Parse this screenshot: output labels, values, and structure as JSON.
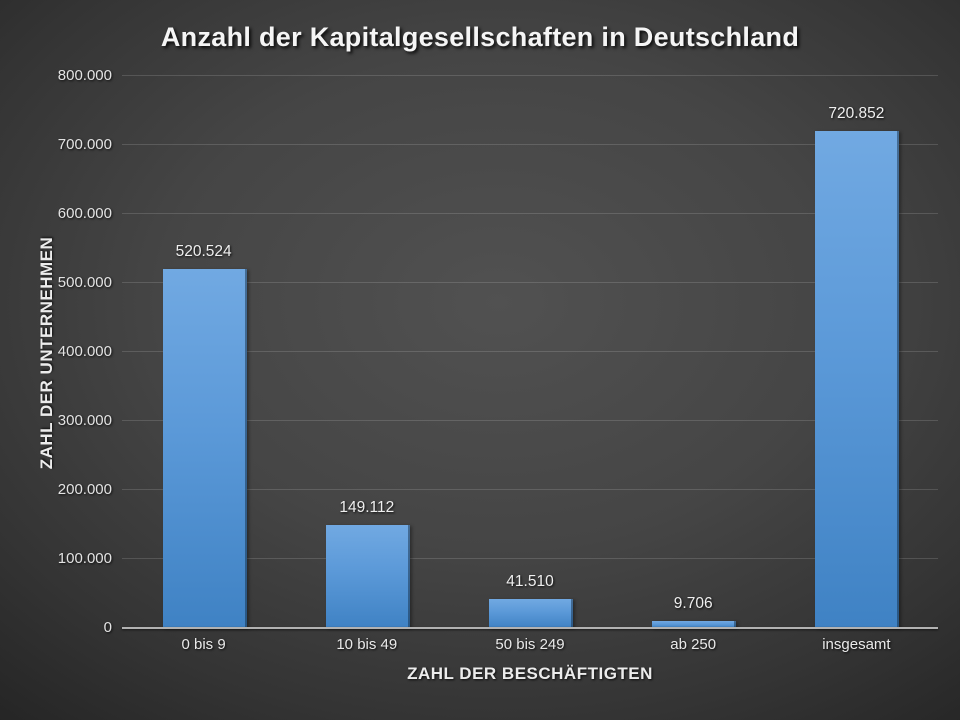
{
  "chart_data": {
    "type": "bar",
    "title": "Anzahl der Kapitalgesellschaften in Deutschland",
    "xlabel": "ZAHL DER BESCHÄFTIGTEN",
    "ylabel": "ZAHL DER UNTERNEHMEN",
    "categories": [
      "0 bis 9",
      "10 bis 49",
      "50 bis 249",
      "ab 250",
      "insgesamt"
    ],
    "values": [
      520524,
      149112,
      41510,
      9706,
      720852
    ],
    "value_labels": [
      "520.524",
      "149.112",
      "41.510",
      "9.706",
      "720.852"
    ],
    "ylim": [
      0,
      800000
    ],
    "ytick_step": 100000,
    "ytick_labels": [
      "0",
      "100.000",
      "200.000",
      "300.000",
      "400.000",
      "500.000",
      "600.000",
      "700.000",
      "800.000"
    ],
    "grid": true,
    "legend": "none",
    "colors": {
      "bar_top": "#71a9e2",
      "bar_bottom": "#3f82c4",
      "background_center": "#515151",
      "background_edge": "#191919",
      "axis_line": "#b2b2b2",
      "gridline": "rgba(255,255,255,0.14)",
      "text": "#efefef"
    }
  }
}
